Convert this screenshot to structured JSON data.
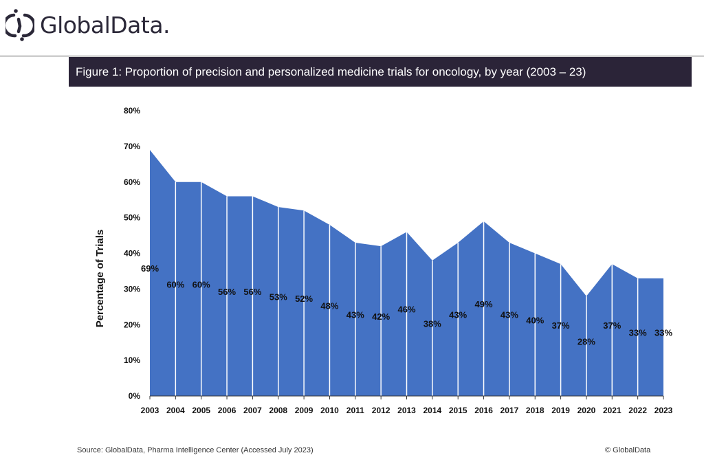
{
  "brand": {
    "name": "GlobalData."
  },
  "figure_title": "Figure 1: Proportion of precision and personalized medicine trials for oncology, by year (2003 – 23)",
  "chart_data": {
    "type": "area",
    "title": "Figure 1: Proportion of precision and personalized medicine trials for oncology, by year (2003 – 23)",
    "xlabel": "",
    "ylabel": "Percentage of Trials",
    "ylim": [
      0,
      80
    ],
    "yticks": [
      "0%",
      "10%",
      "20%",
      "30%",
      "40%",
      "50%",
      "60%",
      "70%",
      "80%"
    ],
    "categories": [
      "2003",
      "2004",
      "2005",
      "2006",
      "2007",
      "2008",
      "2009",
      "2010",
      "2011",
      "2012",
      "2013",
      "2014",
      "2015",
      "2016",
      "2017",
      "2018",
      "2019",
      "2020",
      "2021",
      "2022",
      "2023"
    ],
    "values": [
      69,
      60,
      60,
      56,
      56,
      53,
      52,
      48,
      43,
      42,
      46,
      38,
      43,
      49,
      43,
      40,
      37,
      28,
      37,
      33,
      33
    ],
    "data_labels": [
      "69%",
      "60%",
      "60%",
      "56%",
      "56%",
      "53%",
      "52%",
      "48%",
      "43%",
      "42%",
      "46%",
      "38%",
      "43%",
      "49%",
      "43%",
      "40%",
      "37%",
      "28%",
      "37%",
      "33%",
      "33%"
    ],
    "grid": false,
    "legend": "none",
    "color": "#4472c4"
  },
  "footer": {
    "source": "Source: GlobalData, Pharma Intelligence Center (Accessed July 2023)",
    "copyright": "© GlobalData"
  }
}
